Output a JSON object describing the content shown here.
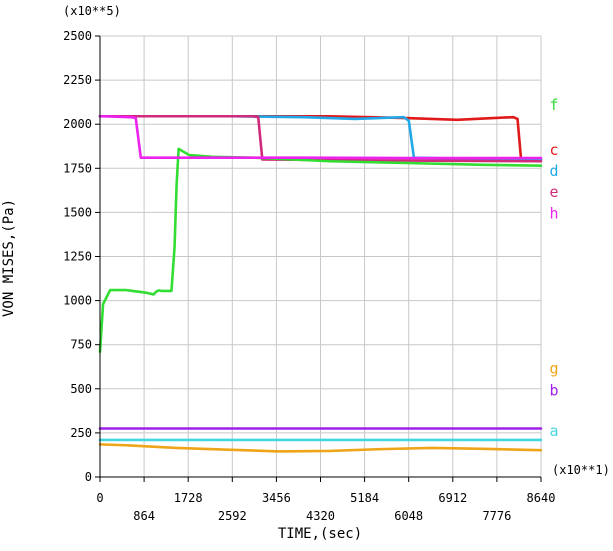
{
  "chart_data": {
    "type": "line",
    "title": "",
    "xlabel": "TIME,(sec)",
    "ylabel": "VON MISES,(Pa)",
    "x_multiplier": "(x10**1)",
    "y_multiplier": "(x10**5)",
    "xlim": [
      0,
      8640
    ],
    "ylim": [
      0,
      2500
    ],
    "x_ticks_row1": [
      "0",
      "1728",
      "3456",
      "5184",
      "6912",
      "8640"
    ],
    "x_ticks_row2": [
      "864",
      "2592",
      "4320",
      "6048",
      "7776"
    ],
    "y_ticks": [
      "0",
      "250",
      "500",
      "750",
      "1000",
      "1250",
      "1500",
      "1750",
      "2000",
      "2250",
      "2500"
    ],
    "grid": true,
    "legend_position": "right",
    "series": [
      {
        "name": "a",
        "color": "#44d7e2",
        "label_level": 260,
        "points": [
          [
            0,
            210
          ],
          [
            8640,
            210
          ]
        ]
      },
      {
        "name": "b",
        "color": "#a020e8",
        "label_level": 490,
        "points": [
          [
            0,
            275
          ],
          [
            8640,
            275
          ]
        ]
      },
      {
        "name": "c",
        "color": "#e01a1a",
        "label_level": 1855,
        "points": [
          [
            0,
            2045
          ],
          [
            1500,
            2045
          ],
          [
            3000,
            2045
          ],
          [
            4500,
            2045
          ],
          [
            6000,
            2035
          ],
          [
            7000,
            2025
          ],
          [
            7500,
            2032
          ],
          [
            8100,
            2040
          ],
          [
            8180,
            2030
          ],
          [
            8250,
            1800
          ],
          [
            8640,
            1800
          ]
        ]
      },
      {
        "name": "d",
        "color": "#22a8e8",
        "label_level": 1735,
        "points": [
          [
            0,
            2045
          ],
          [
            2500,
            2045
          ],
          [
            4000,
            2040
          ],
          [
            5000,
            2030
          ],
          [
            5950,
            2040
          ],
          [
            6050,
            2020
          ],
          [
            6150,
            1810
          ],
          [
            7000,
            1805
          ],
          [
            8640,
            1800
          ]
        ]
      },
      {
        "name": "e",
        "color": "#cf2a7c",
        "label_level": 1615,
        "points": [
          [
            0,
            2045
          ],
          [
            3000,
            2045
          ],
          [
            3100,
            2040
          ],
          [
            3180,
            1800
          ],
          [
            5000,
            1795
          ],
          [
            8640,
            1790
          ]
        ]
      },
      {
        "name": "f",
        "color": "#33dd33",
        "label_level": 2110,
        "points": [
          [
            0,
            710
          ],
          [
            60,
            980
          ],
          [
            200,
            1060
          ],
          [
            500,
            1060
          ],
          [
            900,
            1045
          ],
          [
            1050,
            1035
          ],
          [
            1100,
            1050
          ],
          [
            1150,
            1058
          ],
          [
            1200,
            1055
          ],
          [
            1400,
            1055
          ],
          [
            1460,
            1300
          ],
          [
            1500,
            1650
          ],
          [
            1540,
            1860
          ],
          [
            1600,
            1850
          ],
          [
            1750,
            1825
          ],
          [
            2200,
            1815
          ],
          [
            3000,
            1810
          ],
          [
            4500,
            1790
          ],
          [
            6000,
            1780
          ],
          [
            7500,
            1770
          ],
          [
            8640,
            1765
          ]
        ]
      },
      {
        "name": "g",
        "color": "#eea51a",
        "label_level": 615,
        "points": [
          [
            0,
            185
          ],
          [
            500,
            180
          ],
          [
            1500,
            165
          ],
          [
            2500,
            155
          ],
          [
            3500,
            145
          ],
          [
            4500,
            148
          ],
          [
            5500,
            158
          ],
          [
            6500,
            165
          ],
          [
            7500,
            160
          ],
          [
            8640,
            152
          ]
        ]
      },
      {
        "name": "h",
        "color": "#ee22ee",
        "label_level": 1495,
        "points": [
          [
            0,
            2045
          ],
          [
            600,
            2040
          ],
          [
            700,
            2035
          ],
          [
            800,
            1810
          ],
          [
            2000,
            1810
          ],
          [
            4000,
            1810
          ],
          [
            6000,
            1808
          ],
          [
            8640,
            1808
          ]
        ]
      }
    ]
  }
}
